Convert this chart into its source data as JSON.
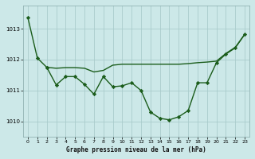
{
  "title": "Graphe pression niveau de la mer (hPa)",
  "bg_color": "#cce8e8",
  "grid_color": "#aacccc",
  "line_color": "#1a5c1a",
  "x_min": 0,
  "x_max": 23,
  "y_min": 1009.5,
  "y_max": 1013.75,
  "yticks": [
    1010,
    1011,
    1012,
    1013
  ],
  "xticks": [
    0,
    1,
    2,
    3,
    4,
    5,
    6,
    7,
    8,
    9,
    10,
    11,
    12,
    13,
    14,
    15,
    16,
    17,
    18,
    19,
    20,
    21,
    22,
    23
  ],
  "line_A_x": [
    0,
    1,
    2,
    3,
    4,
    5,
    6,
    7,
    8,
    9,
    10,
    11,
    12,
    13,
    14,
    15,
    16,
    17,
    18,
    19,
    20,
    21,
    22,
    23
  ],
  "line_A_y": [
    1013.35,
    1012.05,
    1011.75,
    1011.72,
    1011.74,
    1011.74,
    1011.72,
    1011.6,
    1011.65,
    1011.82,
    1011.85,
    1011.85,
    1011.85,
    1011.85,
    1011.85,
    1011.85,
    1011.85,
    1011.87,
    1011.9,
    1012.15,
    1012.38,
    1012.55,
    1012.82,
    1012.82
  ],
  "line_B_x": [
    2,
    3,
    4,
    5,
    6,
    7,
    8,
    9,
    10,
    11,
    12,
    13,
    14,
    15,
    16,
    17,
    18,
    19,
    20,
    21,
    22,
    23
  ],
  "line_B_y": [
    1011.75,
    1011.18,
    1011.45,
    1011.45,
    1011.2,
    1010.88,
    1011.45,
    1011.12,
    1011.15,
    1011.25,
    1011.0,
    1010.3,
    1010.1,
    1010.05,
    1010.15,
    1010.35,
    1011.25,
    1011.25,
    1011.9,
    1012.18,
    1012.38,
    1012.82
  ],
  "line_C_x": [
    2,
    3,
    4,
    5,
    6,
    7,
    8,
    9,
    10,
    11,
    12,
    13,
    14,
    15,
    16,
    17,
    18,
    19,
    20,
    21,
    22,
    23
  ],
  "line_C_y": [
    1011.75,
    1011.72,
    1011.74,
    1011.74,
    1011.72,
    1011.6,
    1011.65,
    1011.82,
    1011.85,
    1011.85,
    1011.85,
    1011.85,
    1011.85,
    1011.85,
    1011.85,
    1011.87,
    1011.9,
    1011.92,
    1011.95,
    1012.2,
    1012.4,
    1012.82
  ]
}
